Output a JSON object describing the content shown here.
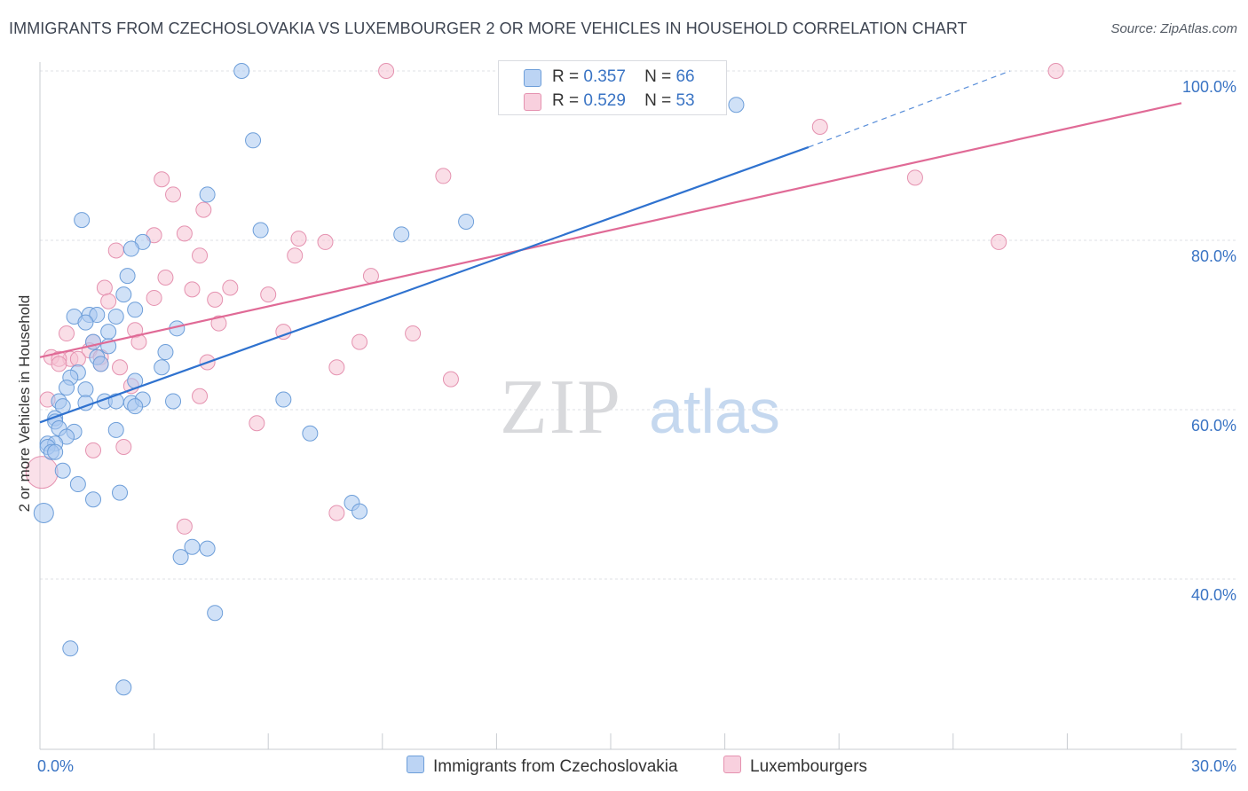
{
  "title": "IMMIGRANTS FROM CZECHOSLOVAKIA VS LUXEMBOURGER 2 OR MORE VEHICLES IN HOUSEHOLD CORRELATION CHART",
  "source": "Source: ZipAtlas.com",
  "watermark": {
    "zip": "ZIP",
    "atlas": "atlas"
  },
  "legend": {
    "r_label": "R =",
    "n_label": "N =",
    "entries": [
      {
        "r": "0.357",
        "n": "66"
      },
      {
        "r": "0.529",
        "n": "53"
      }
    ]
  },
  "chart_data": {
    "type": "scatter",
    "title": "IMMIGRANTS FROM CZECHOSLOVAKIA VS LUXEMBOURGER 2 OR MORE VEHICLES IN HOUSEHOLD CORRELATION CHART",
    "xlabel": "",
    "ylabel": "2 or more Vehicles in Household",
    "xlim": [
      0,
      30
    ],
    "ylim": [
      22,
      102
    ],
    "x_tick_labels": [
      "0.0%",
      "30.0%"
    ],
    "y_ticks": [
      40,
      60,
      80,
      100
    ],
    "y_tick_labels": [
      "40.0%",
      "60.0%",
      "80.0%",
      "100.0%"
    ],
    "colors": {
      "blue_fill": "#a9c8f0",
      "blue_stroke": "#6d9ed9",
      "blue_line": "#2f72cf",
      "pink_fill": "#f6c2d4",
      "pink_stroke": "#e592b0",
      "pink_line": "#e06a96",
      "axis_text": "#3a74c4"
    },
    "series": [
      {
        "name": "Immigrants from Czechoslovakia",
        "color": "#6d9ed9",
        "trend": {
          "x0": 0,
          "y0": 58.5,
          "x1": 20.2,
          "y1": 91.0,
          "dash_x1": 25.5,
          "dash_y1": 100.0
        },
        "points": [
          [
            5.3,
            100.0
          ],
          [
            18.3,
            96.0
          ],
          [
            5.6,
            91.8
          ],
          [
            4.4,
            85.4
          ],
          [
            1.1,
            82.4
          ],
          [
            5.8,
            81.2
          ],
          [
            9.5,
            80.7
          ],
          [
            11.2,
            82.2
          ],
          [
            2.7,
            79.8
          ],
          [
            2.4,
            79.0
          ],
          [
            2.3,
            75.8
          ],
          [
            2.2,
            73.6
          ],
          [
            2.5,
            71.8
          ],
          [
            0.9,
            71.0
          ],
          [
            1.3,
            71.2
          ],
          [
            1.5,
            71.2
          ],
          [
            2.0,
            71.0
          ],
          [
            1.2,
            70.3
          ],
          [
            3.6,
            69.6
          ],
          [
            1.8,
            69.2
          ],
          [
            1.4,
            68.0
          ],
          [
            1.8,
            67.5
          ],
          [
            3.3,
            66.8
          ],
          [
            1.5,
            66.2
          ],
          [
            1.6,
            65.4
          ],
          [
            3.2,
            65.0
          ],
          [
            1.0,
            64.4
          ],
          [
            0.8,
            63.8
          ],
          [
            2.5,
            63.4
          ],
          [
            0.7,
            62.6
          ],
          [
            1.2,
            62.4
          ],
          [
            0.5,
            61.0
          ],
          [
            1.2,
            60.8
          ],
          [
            1.7,
            61.0
          ],
          [
            2.0,
            61.0
          ],
          [
            2.4,
            60.8
          ],
          [
            2.7,
            61.2
          ],
          [
            3.5,
            61.0
          ],
          [
            6.4,
            61.2
          ],
          [
            2.5,
            60.4
          ],
          [
            0.6,
            60.4
          ],
          [
            0.4,
            59.0
          ],
          [
            0.4,
            58.6
          ],
          [
            0.9,
            57.4
          ],
          [
            0.5,
            57.8
          ],
          [
            2.0,
            57.6
          ],
          [
            7.1,
            57.2
          ],
          [
            0.7,
            56.8
          ],
          [
            0.2,
            56.0
          ],
          [
            0.4,
            56.0
          ],
          [
            0.2,
            55.6
          ],
          [
            0.3,
            55.0
          ],
          [
            0.4,
            55.0
          ],
          [
            0.6,
            52.8
          ],
          [
            1.0,
            51.2
          ],
          [
            2.1,
            50.2
          ],
          [
            1.4,
            49.4
          ],
          [
            8.2,
            49.0
          ],
          [
            8.4,
            48.0
          ],
          [
            0.1,
            47.8
          ],
          [
            4.0,
            43.8
          ],
          [
            3.7,
            42.6
          ],
          [
            4.4,
            43.6
          ],
          [
            4.6,
            36.0
          ],
          [
            0.8,
            31.8
          ],
          [
            2.2,
            27.2
          ]
        ]
      },
      {
        "name": "Luxembourgers",
        "color": "#e592b0",
        "trend": {
          "x0": 0,
          "y0": 66.2,
          "x1": 30,
          "y1": 96.2
        },
        "points": [
          [
            9.1,
            100.0
          ],
          [
            26.7,
            100.0
          ],
          [
            20.5,
            93.4
          ],
          [
            10.6,
            87.6
          ],
          [
            23.0,
            87.4
          ],
          [
            3.2,
            87.2
          ],
          [
            3.5,
            85.4
          ],
          [
            4.3,
            83.6
          ],
          [
            3.8,
            80.8
          ],
          [
            3.0,
            80.6
          ],
          [
            6.8,
            80.2
          ],
          [
            7.5,
            79.8
          ],
          [
            25.2,
            79.8
          ],
          [
            2.0,
            78.8
          ],
          [
            4.2,
            78.2
          ],
          [
            6.7,
            78.2
          ],
          [
            8.7,
            75.8
          ],
          [
            3.3,
            75.6
          ],
          [
            1.7,
            74.4
          ],
          [
            4.0,
            74.2
          ],
          [
            5.0,
            74.4
          ],
          [
            6.0,
            73.6
          ],
          [
            3.0,
            73.2
          ],
          [
            4.6,
            73.0
          ],
          [
            1.8,
            72.8
          ],
          [
            4.7,
            70.2
          ],
          [
            2.5,
            69.4
          ],
          [
            6.4,
            69.2
          ],
          [
            9.8,
            69.0
          ],
          [
            0.7,
            69.0
          ],
          [
            2.6,
            68.0
          ],
          [
            1.4,
            68.0
          ],
          [
            8.4,
            68.0
          ],
          [
            1.3,
            67.0
          ],
          [
            0.8,
            66.0
          ],
          [
            1.0,
            66.0
          ],
          [
            0.3,
            66.2
          ],
          [
            0.5,
            66.0
          ],
          [
            1.6,
            66.2
          ],
          [
            0.5,
            65.4
          ],
          [
            1.6,
            65.4
          ],
          [
            4.4,
            65.6
          ],
          [
            2.1,
            65.0
          ],
          [
            7.8,
            65.0
          ],
          [
            10.8,
            63.6
          ],
          [
            2.4,
            62.8
          ],
          [
            4.2,
            61.6
          ],
          [
            0.2,
            61.2
          ],
          [
            5.7,
            58.4
          ],
          [
            2.2,
            55.6
          ],
          [
            1.4,
            55.2
          ],
          [
            7.8,
            47.8
          ],
          [
            3.8,
            46.2
          ]
        ]
      }
    ]
  },
  "bottom_legend": [
    "Immigrants from Czechoslovakia",
    "Luxembourgers"
  ]
}
